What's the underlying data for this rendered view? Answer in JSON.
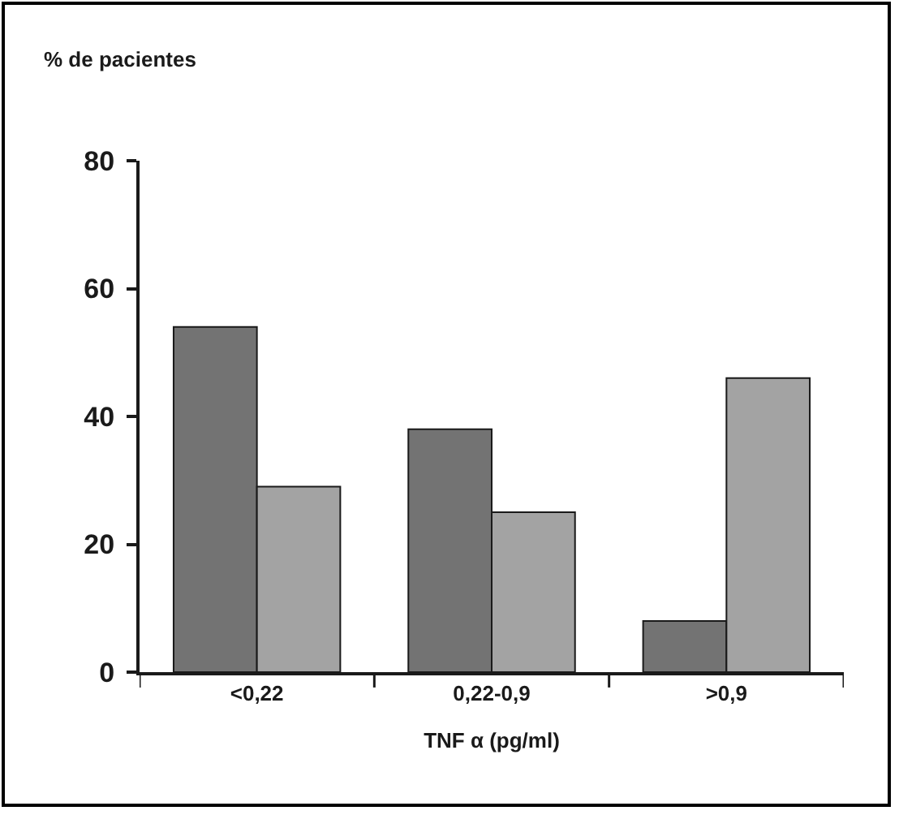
{
  "chart_data": {
    "type": "bar",
    "ylabel": "% de pacientes",
    "xlabel": "TNF α (pg/ml)",
    "categories": [
      "<0,22",
      "0,22-0,9",
      ">0,9"
    ],
    "series": [
      {
        "color": "#737373",
        "values": [
          54,
          38,
          8
        ]
      },
      {
        "color": "#a3a3a3",
        "values": [
          29,
          25,
          46
        ]
      }
    ],
    "ylim": [
      0,
      80
    ],
    "yticks": [
      0,
      20,
      40,
      60,
      80
    ]
  }
}
